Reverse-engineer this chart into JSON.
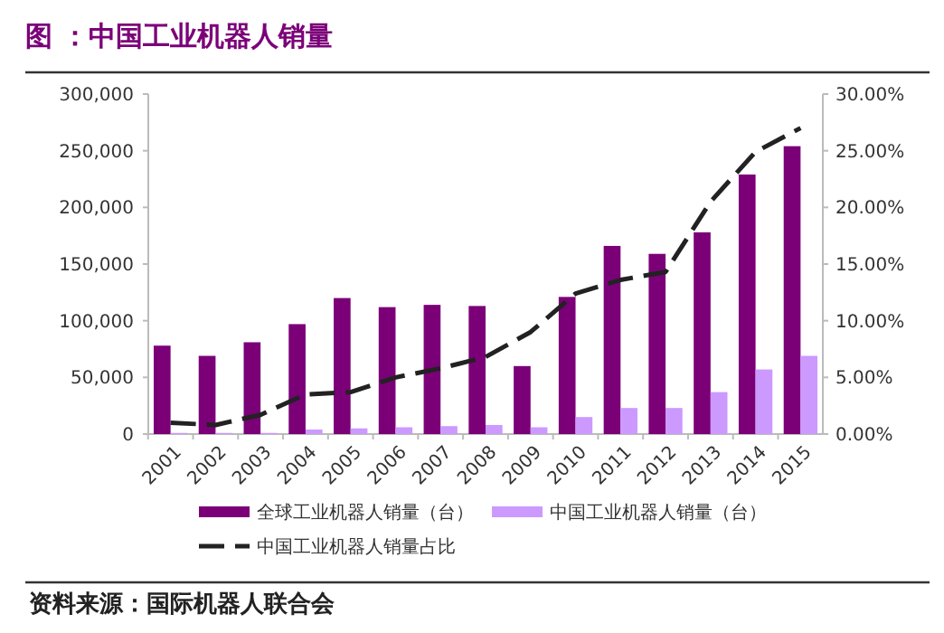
{
  "chart_data": {
    "type": "bar",
    "title": "图 ：中国工业机器人销量",
    "categories": [
      "2001",
      "2002",
      "2003",
      "2004",
      "2005",
      "2006",
      "2007",
      "2008",
      "2009",
      "2010",
      "2011",
      "2012",
      "2013",
      "2014",
      "2015"
    ],
    "series": [
      {
        "name": "全球工业机器人销量（台）",
        "color": "#7b0078",
        "values": [
          78000,
          69000,
          81000,
          97000,
          120000,
          112000,
          114000,
          113000,
          60000,
          121000,
          166000,
          159000,
          178000,
          229000,
          254000
        ]
      },
      {
        "name": "中国工业机器人销量（台）",
        "color": "#cc99ff",
        "values": [
          1000,
          1000,
          1000,
          4000,
          5000,
          6000,
          7000,
          8000,
          6000,
          15000,
          23000,
          23000,
          37000,
          57000,
          69000
        ]
      },
      {
        "name": "中国工业机器人销量占比",
        "type": "line",
        "axis": "y2",
        "color": "#222222",
        "line_style": "dashed",
        "marker": "none",
        "values": [
          1.0,
          0.8,
          1.7,
          3.5,
          3.7,
          5.0,
          5.8,
          6.8,
          9.0,
          12.4,
          13.6,
          14.3,
          20.5,
          24.9,
          27.0
        ]
      }
    ],
    "ylim": [
      0,
      300000
    ],
    "yticks": [
      {
        "value": 0,
        "label": "0"
      },
      {
        "value": 50000,
        "label": "50,000"
      },
      {
        "value": 100000,
        "label": "100,000"
      },
      {
        "value": 150000,
        "label": "150,000"
      },
      {
        "value": 200000,
        "label": "200,000"
      },
      {
        "value": 250000,
        "label": "250,000"
      },
      {
        "value": 300000,
        "label": "300,000"
      }
    ],
    "y2lim": [
      0,
      30
    ],
    "y2ticks": [
      {
        "value": 0,
        "label": "0.00%"
      },
      {
        "value": 5,
        "label": "5.00%"
      },
      {
        "value": 10,
        "label": "10.00%"
      },
      {
        "value": 15,
        "label": "15.00%"
      },
      {
        "value": 20,
        "label": "20.00%"
      },
      {
        "value": 25,
        "label": "25.00%"
      },
      {
        "value": 30,
        "label": "30.00%"
      }
    ],
    "grid": false,
    "legend": "bottom",
    "annotations": [
      "资料来源：国际机器人联合会"
    ]
  }
}
